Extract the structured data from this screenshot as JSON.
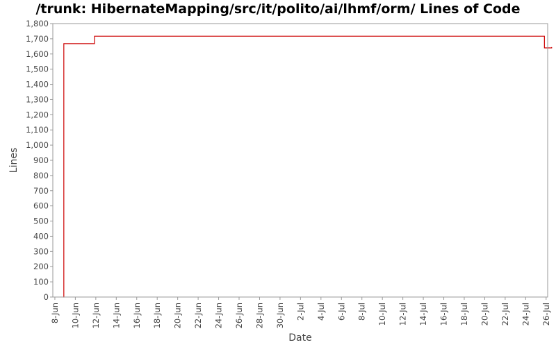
{
  "chart_data": {
    "type": "line",
    "title": "/trunk: HibernateMapping/src/it/polito/ai/lhmf/orm/ Lines of Code",
    "xlabel": "Date",
    "ylabel": "Lines",
    "ylim": [
      0,
      1800
    ],
    "yticks": [
      0,
      100,
      200,
      300,
      400,
      500,
      600,
      700,
      800,
      900,
      1000,
      1100,
      1200,
      1300,
      1400,
      1500,
      1600,
      1700,
      1800
    ],
    "ytick_labels": [
      "0",
      "100",
      "200",
      "300",
      "400",
      "500",
      "600",
      "700",
      "800",
      "900",
      "1,000",
      "1,100",
      "1,200",
      "1,300",
      "1,400",
      "1,500",
      "1,600",
      "1,700",
      "1,800"
    ],
    "xlim": [
      "2012-06-08",
      "2012-07-26"
    ],
    "xtick_labels": [
      "8-Jun",
      "10-Jun",
      "12-Jun",
      "14-Jun",
      "16-Jun",
      "18-Jun",
      "20-Jun",
      "22-Jun",
      "24-Jun",
      "26-Jun",
      "28-Jun",
      "30-Jun",
      "2-Jul",
      "4-Jul",
      "6-Jul",
      "8-Jul",
      "10-Jul",
      "12-Jul",
      "14-Jul",
      "16-Jul",
      "18-Jul",
      "20-Jul",
      "22-Jul",
      "24-Jul",
      "26-Jul"
    ],
    "grid": false,
    "color": "#cc0000",
    "series": [
      {
        "step": true,
        "points": [
          [
            "2012-06-08T20:00",
            0
          ],
          [
            "2012-06-08T21:00",
            1668
          ],
          [
            "2012-06-11T21:00",
            1717
          ],
          [
            "2012-07-25T20:00",
            1640
          ],
          [
            "2012-07-26T13:00",
            1645
          ]
        ]
      }
    ]
  }
}
